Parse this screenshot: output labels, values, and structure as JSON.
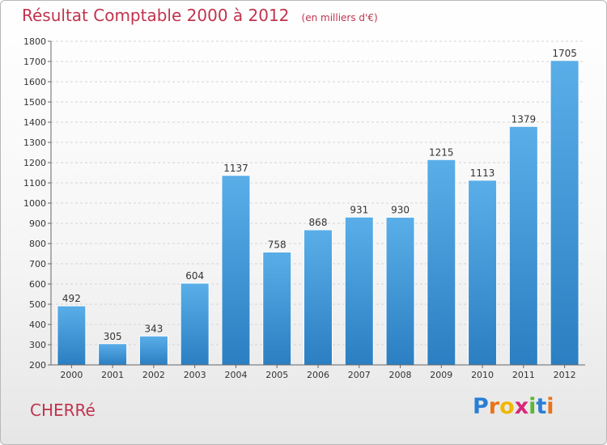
{
  "header": {
    "title": "Résultat Comptable 2000 à 2012",
    "subtitle": "(en milliers d'€)"
  },
  "footer": {
    "city": "CHERRé",
    "logo_text": "Proxiti"
  },
  "colors": {
    "title": "#c0334d",
    "bar_light": "#5aaee8",
    "bar_dark": "#2b7fc2"
  },
  "chart_data": {
    "type": "bar",
    "title": "Résultat Comptable 2000 à 2012",
    "subtitle": "(en milliers d'€)",
    "categories": [
      "2000",
      "2001",
      "2002",
      "2003",
      "2004",
      "2005",
      "2006",
      "2007",
      "2008",
      "2009",
      "2010",
      "2011",
      "2012"
    ],
    "values": [
      492,
      305,
      343,
      604,
      1137,
      758,
      868,
      931,
      930,
      1215,
      1113,
      1379,
      1705
    ],
    "ylim": [
      200,
      1800
    ],
    "yticks": [
      200,
      300,
      400,
      500,
      600,
      700,
      800,
      900,
      1000,
      1100,
      1200,
      1300,
      1400,
      1500,
      1600,
      1700,
      1800
    ],
    "grid": true,
    "data_labels": true
  }
}
